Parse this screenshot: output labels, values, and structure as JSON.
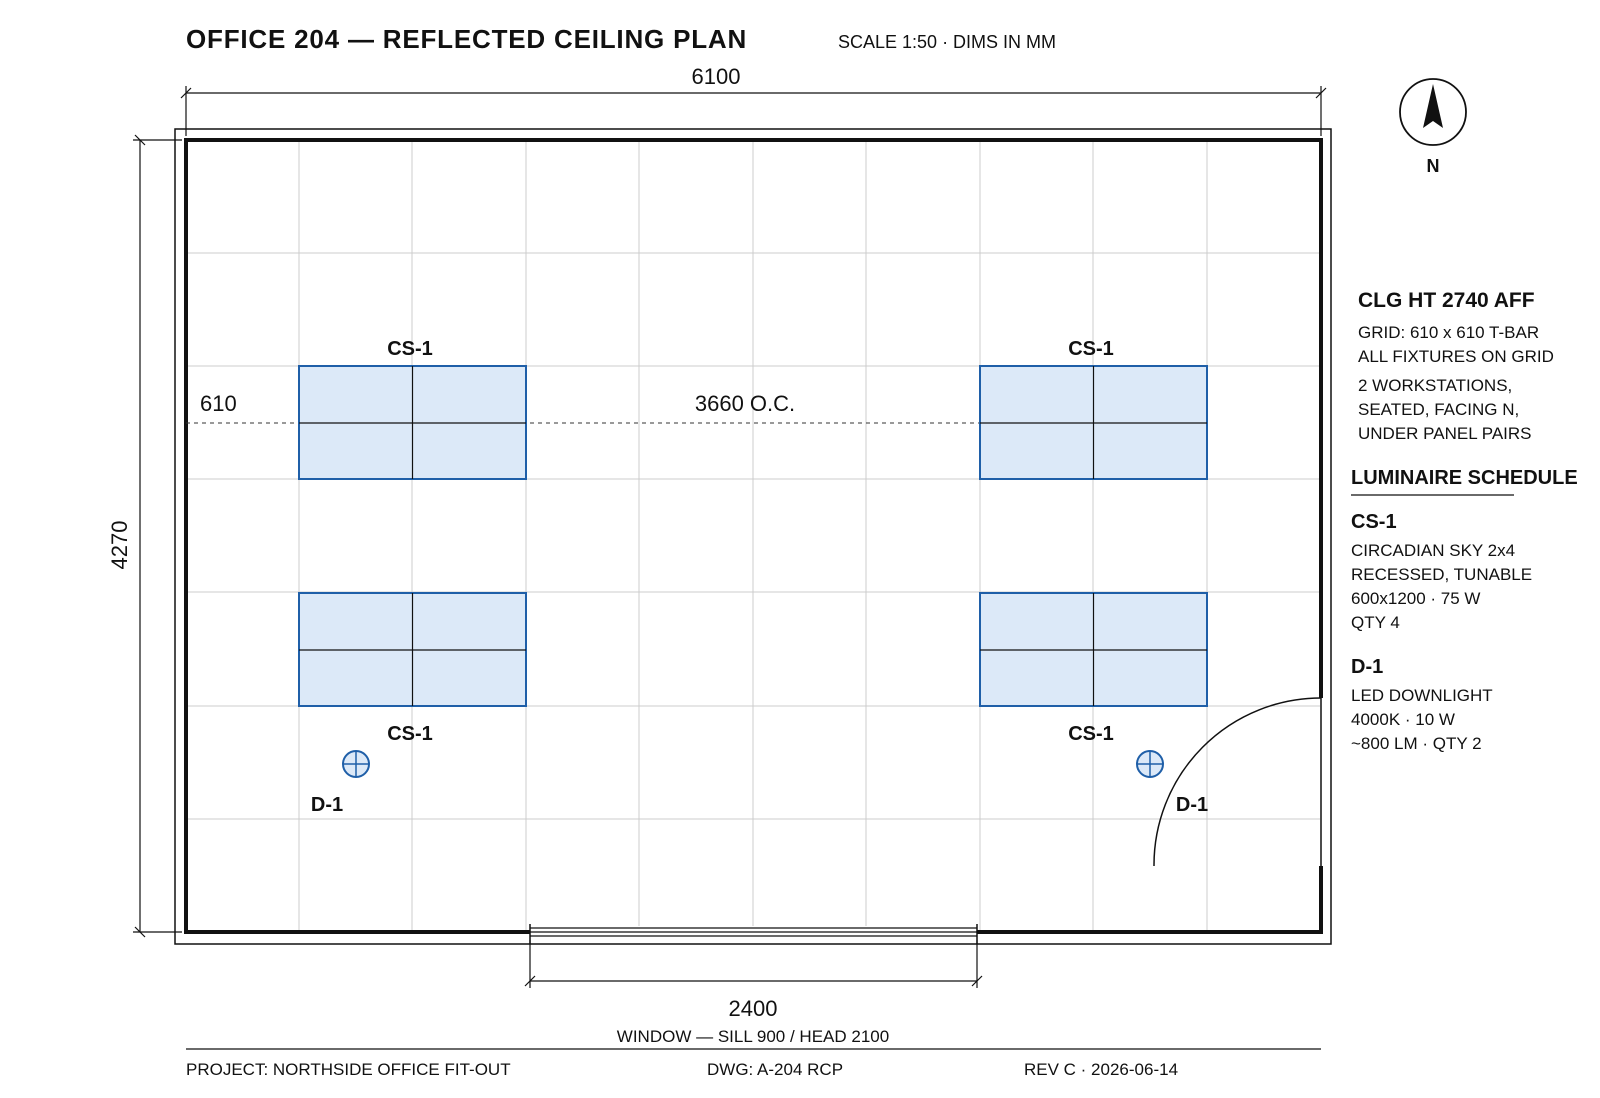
{
  "header": {
    "title": "OFFICE 204 — REFLECTED CEILING PLAN",
    "scale": "SCALE 1:50 · DIMS IN MM"
  },
  "north": {
    "label": "N"
  },
  "dimensions": {
    "width": "6100",
    "height": "4270",
    "offset": "610",
    "spacing": "3660 O.C.",
    "window_width": "2400",
    "window_note": "WINDOW — SILL 900 / HEAD 2100"
  },
  "fixtures": {
    "panel_tag": "CS-1",
    "downlight_tag": "D-1"
  },
  "notes": {
    "ceiling_height": "CLG HT 2740 AFF",
    "lines": [
      "GRID: 610 x 610 T-BAR",
      "ALL FIXTURES ON GRID",
      "2 WORKSTATIONS,",
      "SEATED, FACING N,",
      "UNDER PANEL PAIRS"
    ]
  },
  "schedule": {
    "heading": "LUMINAIRE SCHEDULE",
    "items": [
      {
        "tag": "CS-1",
        "lines": [
          "CIRCADIAN SKY 2x4",
          "RECESSED, TUNABLE",
          "600x1200 · 75 W",
          "QTY 4"
        ]
      },
      {
        "tag": "D-1",
        "lines": [
          "LED DOWNLIGHT",
          "4000K · 10 W",
          "~800 LM · QTY 2"
        ]
      }
    ]
  },
  "footer": {
    "project": "PROJECT: NORTHSIDE OFFICE FIT-OUT",
    "drawing": "DWG: A-204 RCP",
    "revision": "REV C · 2026-06-14"
  },
  "colors": {
    "fixture_fill": "#dce9f8",
    "fixture_stroke": "#1f5fa8",
    "grid": "#cccccc",
    "wall": "#111111"
  }
}
